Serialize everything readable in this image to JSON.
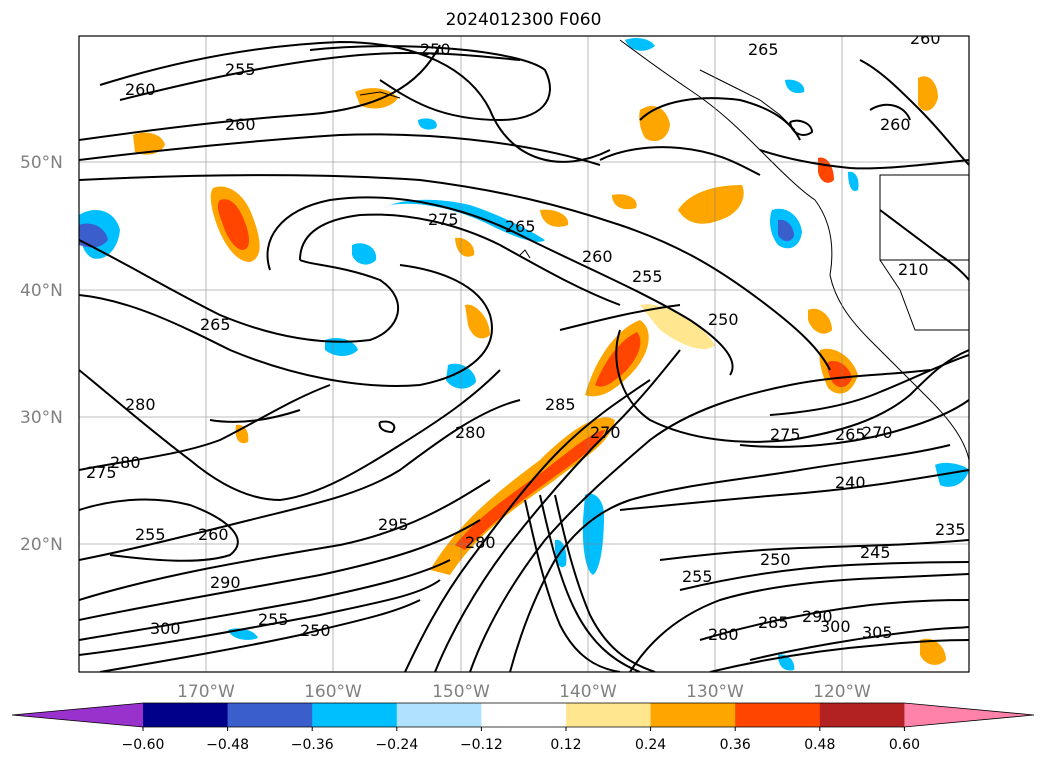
{
  "title": "2024012300 F060",
  "map": {
    "lat_labels": [
      "50°N",
      "40°N",
      "30°N",
      "20°N"
    ],
    "lon_labels": [
      "170°W",
      "160°W",
      "150°W",
      "140°W",
      "130°W",
      "120°W"
    ],
    "contour_labels": [
      "260",
      "255",
      "250",
      "260",
      "265",
      "260",
      "260",
      "275",
      "265",
      "260",
      "255",
      "250",
      "265",
      "280",
      "275",
      "280",
      "255",
      "260",
      "285",
      "270",
      "280",
      "295",
      "280",
      "275",
      "265",
      "240",
      "245",
      "250",
      "255",
      "285",
      "290",
      "300",
      "305",
      "235",
      "270",
      "280",
      "210",
      "250",
      "255",
      "300",
      "290"
    ],
    "colors": {
      "land_border": "#000000",
      "grid": "#808080",
      "contour": "#000000"
    }
  },
  "colorbar": {
    "tick_labels": [
      "−0.60",
      "−0.48",
      "−0.36",
      "−0.24",
      "−0.12",
      "0.12",
      "0.24",
      "0.36",
      "0.48",
      "0.60"
    ],
    "colors": [
      "#9932cc",
      "#00008b",
      "#3a5fcd",
      "#00bfff",
      "#b0e2ff",
      "#ffffff",
      "#ffe68f",
      "#ffa500",
      "#ff4500",
      "#b22222",
      "#ff82ab"
    ]
  }
}
